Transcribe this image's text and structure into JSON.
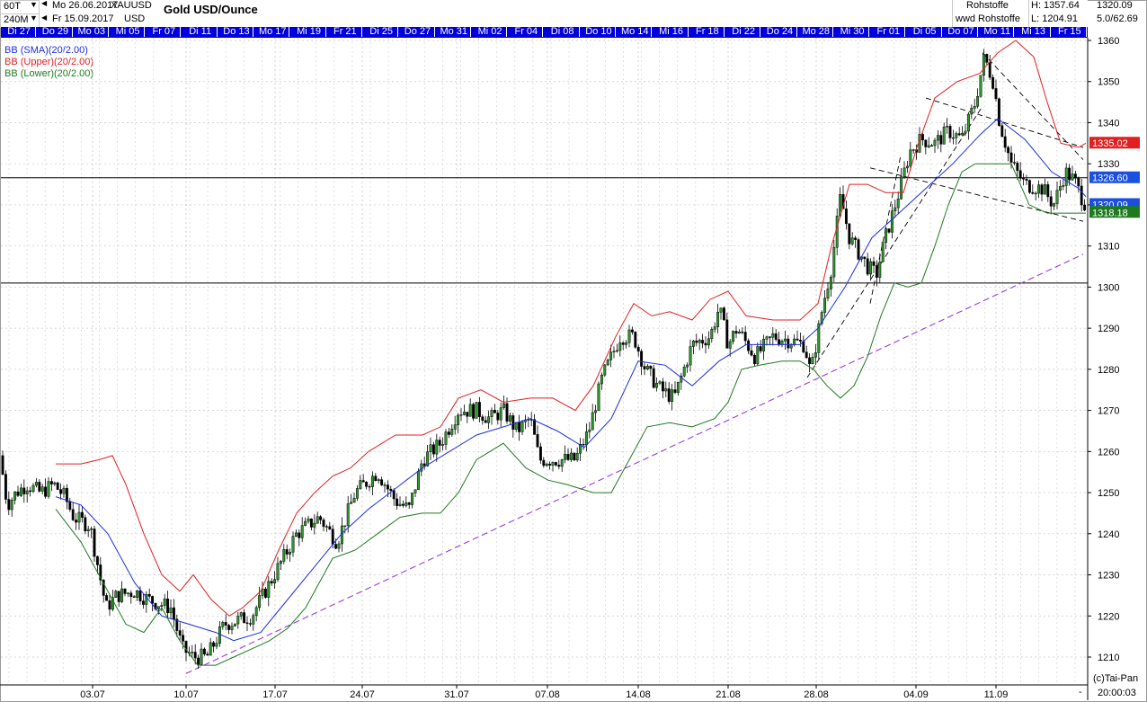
{
  "header": {
    "interval_primary": "60T",
    "interval_secondary": "240M",
    "date_from": "Mo 26.06.2017",
    "date_to": "Fr 15.09.2017",
    "symbol": "XAUUSD",
    "currency": "USD",
    "title": "Gold USD/Ounce",
    "exchange": "Rohstoffe",
    "exchange2": "wwd Rohstoffe",
    "high": "H: 1357.64",
    "low": "L: 1204.91",
    "last": "1320.09",
    "range": "5.0/62.69"
  },
  "date_bar": [
    "Di 27",
    "Do 29",
    "Mo 03",
    "Mi 05",
    "Fr 07",
    "Di 11",
    "Do 13",
    "Mo 17",
    "Mi 19",
    "Fr 21",
    "Di 25",
    "Do 27",
    "Mo 31",
    "Mi 02",
    "Fr 04",
    "Di 08",
    "Do 10",
    "Mo 14",
    "Mi 16",
    "Fr 18",
    "Di 22",
    "Do 24",
    "Mo 28",
    "Mi 30",
    "Fr 01",
    "Di 05",
    "Do 07",
    "Mo 11",
    "Mi 13",
    "Fr 15"
  ],
  "indicators": [
    {
      "label": "BB (SMA)(20/2.00)",
      "color": "#1a2ee0"
    },
    {
      "label": "BB (Upper)(20/2.00)",
      "color": "#e02020"
    },
    {
      "label": "BB (Lower)(20/2.00)",
      "color": "#1f7a1f"
    }
  ],
  "price_tags": [
    {
      "value": "1335.02",
      "color": "#e02020"
    },
    {
      "value": "1326.60",
      "color": "#1a4fe0"
    },
    {
      "value": "1320.09",
      "color": "#1a4fe0"
    },
    {
      "value": "1318.18",
      "color": "#1f7a1f"
    }
  ],
  "footer": {
    "credit": "(c)Tai-Pan",
    "time": "20:00:03"
  },
  "chart_data": {
    "type": "candlestick",
    "symbol": "XAUUSD",
    "title": "Gold USD/Ounce",
    "ylim": [
      1204,
      1362
    ],
    "y_ticks": [
      1210,
      1220,
      1230,
      1240,
      1250,
      1260,
      1270,
      1280,
      1290,
      1300,
      1310,
      1320,
      1330,
      1340,
      1350,
      1360
    ],
    "x_ticks": [
      "03.07",
      "10.07",
      "17.07",
      "24.07",
      "31.07",
      "07.08",
      "14.08",
      "21.08",
      "28.08",
      "04.09",
      "11.09"
    ],
    "x_tick_positions": [
      103,
      207,
      306,
      403,
      508,
      609,
      710,
      810,
      908,
      1019,
      1108
    ],
    "grid": true,
    "horizontal_lines": [
      1326.6,
      1301.0
    ],
    "trendlines": [
      {
        "style": "dashed-purple",
        "from": {
          "x": "10.07",
          "y": 1206
        },
        "to": {
          "x": "15.09",
          "y": 1308
        }
      },
      {
        "style": "dashed-black",
        "from": {
          "x": "28.08",
          "y": 1278
        },
        "to": {
          "x": "08.09",
          "y": 1344
        }
      },
      {
        "style": "dashed-black",
        "from": {
          "x": "31.08",
          "y": 1296
        },
        "to": {
          "x": "05.09",
          "y": 1332
        }
      },
      {
        "style": "dashed-black",
        "from": {
          "x": "08.09",
          "y": 1357
        },
        "to": {
          "x": "15.09",
          "y": 1331
        }
      },
      {
        "style": "dashed-black",
        "from": {
          "x": "07.09",
          "y": 1346
        },
        "to": {
          "x": "15.09",
          "y": 1334
        }
      },
      {
        "style": "dashed-black",
        "from": {
          "x": "31.08",
          "y": 1329
        },
        "to": {
          "x": "15.09",
          "y": 1316
        }
      }
    ],
    "price_keypoints": [
      [
        0,
        1259
      ],
      [
        8,
        1247
      ],
      [
        18,
        1250
      ],
      [
        30,
        1252
      ],
      [
        45,
        1250
      ],
      [
        60,
        1252
      ],
      [
        72,
        1249
      ],
      [
        82,
        1244
      ],
      [
        100,
        1242
      ],
      [
        118,
        1222
      ],
      [
        130,
        1225
      ],
      [
        150,
        1226
      ],
      [
        165,
        1224
      ],
      [
        190,
        1222
      ],
      [
        203,
        1212
      ],
      [
        215,
        1210
      ],
      [
        230,
        1210
      ],
      [
        250,
        1218
      ],
      [
        280,
        1220
      ],
      [
        300,
        1228
      ],
      [
        330,
        1240
      ],
      [
        355,
        1244
      ],
      [
        375,
        1238
      ],
      [
        395,
        1250
      ],
      [
        420,
        1255
      ],
      [
        440,
        1248
      ],
      [
        455,
        1246
      ],
      [
        470,
        1258
      ],
      [
        490,
        1262
      ],
      [
        510,
        1270
      ],
      [
        530,
        1270
      ],
      [
        545,
        1268
      ],
      [
        560,
        1270
      ],
      [
        575,
        1265
      ],
      [
        590,
        1268
      ],
      [
        600,
        1258
      ],
      [
        625,
        1258
      ],
      [
        640,
        1258
      ],
      [
        655,
        1265
      ],
      [
        670,
        1278
      ],
      [
        690,
        1288
      ],
      [
        705,
        1288
      ],
      [
        718,
        1280
      ],
      [
        735,
        1275
      ],
      [
        750,
        1273
      ],
      [
        770,
        1286
      ],
      [
        790,
        1288
      ],
      [
        800,
        1295
      ],
      [
        810,
        1286
      ],
      [
        820,
        1290
      ],
      [
        840,
        1283
      ],
      [
        860,
        1288
      ],
      [
        880,
        1287
      ],
      [
        895,
        1286
      ],
      [
        902,
        1279
      ],
      [
        915,
        1295
      ],
      [
        925,
        1305
      ],
      [
        935,
        1322
      ],
      [
        945,
        1312
      ],
      [
        965,
        1305
      ],
      [
        975,
        1303
      ],
      [
        985,
        1312
      ],
      [
        1000,
        1323
      ],
      [
        1012,
        1333
      ],
      [
        1025,
        1336
      ],
      [
        1040,
        1335
      ],
      [
        1055,
        1338
      ],
      [
        1070,
        1336
      ],
      [
        1085,
        1345
      ],
      [
        1095,
        1356
      ],
      [
        1105,
        1350
      ],
      [
        1112,
        1340
      ],
      [
        1125,
        1330
      ],
      [
        1140,
        1325
      ],
      [
        1160,
        1324
      ],
      [
        1172,
        1320
      ],
      [
        1185,
        1328
      ],
      [
        1195,
        1326
      ],
      [
        1203,
        1322
      ],
      [
        1208,
        1320
      ]
    ],
    "series": [
      {
        "name": "BB (SMA)(20/2.00)",
        "values": [
          [
            62,
            1249
          ],
          [
            90,
            1247
          ],
          [
            120,
            1240
          ],
          [
            150,
            1228
          ],
          [
            180,
            1220
          ],
          [
            210,
            1218
          ],
          [
            240,
            1216
          ],
          [
            260,
            1214
          ],
          [
            290,
            1216
          ],
          [
            320,
            1224
          ],
          [
            350,
            1232
          ],
          [
            380,
            1240
          ],
          [
            410,
            1246
          ],
          [
            440,
            1251
          ],
          [
            470,
            1256
          ],
          [
            500,
            1260
          ],
          [
            530,
            1264
          ],
          [
            560,
            1266
          ],
          [
            590,
            1268
          ],
          [
            620,
            1265
          ],
          [
            650,
            1261
          ],
          [
            680,
            1268
          ],
          [
            710,
            1282
          ],
          [
            740,
            1281
          ],
          [
            770,
            1276
          ],
          [
            800,
            1282
          ],
          [
            830,
            1286
          ],
          [
            860,
            1286
          ],
          [
            890,
            1286
          ],
          [
            910,
            1290
          ],
          [
            940,
            1300
          ],
          [
            970,
            1312
          ],
          [
            1000,
            1318
          ],
          [
            1030,
            1324
          ],
          [
            1060,
            1330
          ],
          [
            1090,
            1337
          ],
          [
            1110,
            1341
          ],
          [
            1140,
            1336
          ],
          [
            1170,
            1328
          ],
          [
            1200,
            1324
          ],
          [
            1208,
            1322
          ]
        ]
      },
      {
        "name": "BB (Upper)(20/2.00)",
        "values": [
          [
            62,
            1257
          ],
          [
            90,
            1257
          ],
          [
            110,
            1258
          ],
          [
            125,
            1259
          ],
          [
            140,
            1252
          ],
          [
            160,
            1240
          ],
          [
            180,
            1230
          ],
          [
            200,
            1226
          ],
          [
            215,
            1230
          ],
          [
            235,
            1224
          ],
          [
            255,
            1220
          ],
          [
            270,
            1222
          ],
          [
            290,
            1226
          ],
          [
            310,
            1236
          ],
          [
            330,
            1245
          ],
          [
            350,
            1250
          ],
          [
            370,
            1254
          ],
          [
            390,
            1256
          ],
          [
            410,
            1260
          ],
          [
            440,
            1264
          ],
          [
            470,
            1264
          ],
          [
            490,
            1266
          ],
          [
            510,
            1273
          ],
          [
            535,
            1275
          ],
          [
            560,
            1272
          ],
          [
            590,
            1273
          ],
          [
            615,
            1273
          ],
          [
            640,
            1270
          ],
          [
            660,
            1276
          ],
          [
            685,
            1288
          ],
          [
            705,
            1296
          ],
          [
            725,
            1293
          ],
          [
            745,
            1294
          ],
          [
            770,
            1292
          ],
          [
            790,
            1297
          ],
          [
            810,
            1299
          ],
          [
            830,
            1293
          ],
          [
            860,
            1292
          ],
          [
            890,
            1292
          ],
          [
            910,
            1296
          ],
          [
            925,
            1310
          ],
          [
            945,
            1325
          ],
          [
            965,
            1325
          ],
          [
            985,
            1323
          ],
          [
            1005,
            1323
          ],
          [
            1020,
            1334
          ],
          [
            1040,
            1346
          ],
          [
            1065,
            1350
          ],
          [
            1090,
            1352
          ],
          [
            1110,
            1357
          ],
          [
            1130,
            1360
          ],
          [
            1150,
            1356
          ],
          [
            1165,
            1345
          ],
          [
            1180,
            1335
          ],
          [
            1200,
            1334
          ],
          [
            1208,
            1335
          ]
        ]
      },
      {
        "name": "BB (Lower)(20/2.00)",
        "values": [
          [
            62,
            1246
          ],
          [
            90,
            1238
          ],
          [
            120,
            1226
          ],
          [
            140,
            1218
          ],
          [
            160,
            1216
          ],
          [
            180,
            1222
          ],
          [
            200,
            1214
          ],
          [
            220,
            1208
          ],
          [
            240,
            1208
          ],
          [
            260,
            1210
          ],
          [
            280,
            1212
          ],
          [
            300,
            1214
          ],
          [
            320,
            1217
          ],
          [
            340,
            1222
          ],
          [
            370,
            1234
          ],
          [
            395,
            1236
          ],
          [
            420,
            1240
          ],
          [
            445,
            1244
          ],
          [
            470,
            1245
          ],
          [
            490,
            1245
          ],
          [
            510,
            1250
          ],
          [
            530,
            1258
          ],
          [
            560,
            1262
          ],
          [
            585,
            1256
          ],
          [
            610,
            1253
          ],
          [
            630,
            1252
          ],
          [
            660,
            1250
          ],
          [
            680,
            1250
          ],
          [
            700,
            1258
          ],
          [
            720,
            1266
          ],
          [
            745,
            1267
          ],
          [
            770,
            1266
          ],
          [
            795,
            1268
          ],
          [
            810,
            1272
          ],
          [
            825,
            1280
          ],
          [
            845,
            1281
          ],
          [
            870,
            1282
          ],
          [
            890,
            1282
          ],
          [
            905,
            1280
          ],
          [
            920,
            1276
          ],
          [
            935,
            1273
          ],
          [
            950,
            1276
          ],
          [
            965,
            1283
          ],
          [
            980,
            1293
          ],
          [
            995,
            1301
          ],
          [
            1010,
            1300
          ],
          [
            1025,
            1301
          ],
          [
            1040,
            1310
          ],
          [
            1055,
            1320
          ],
          [
            1070,
            1328
          ],
          [
            1085,
            1330
          ],
          [
            1105,
            1330
          ],
          [
            1125,
            1330
          ],
          [
            1145,
            1320
          ],
          [
            1165,
            1318
          ],
          [
            1185,
            1318
          ],
          [
            1200,
            1318
          ],
          [
            1208,
            1318
          ]
        ]
      }
    ]
  }
}
